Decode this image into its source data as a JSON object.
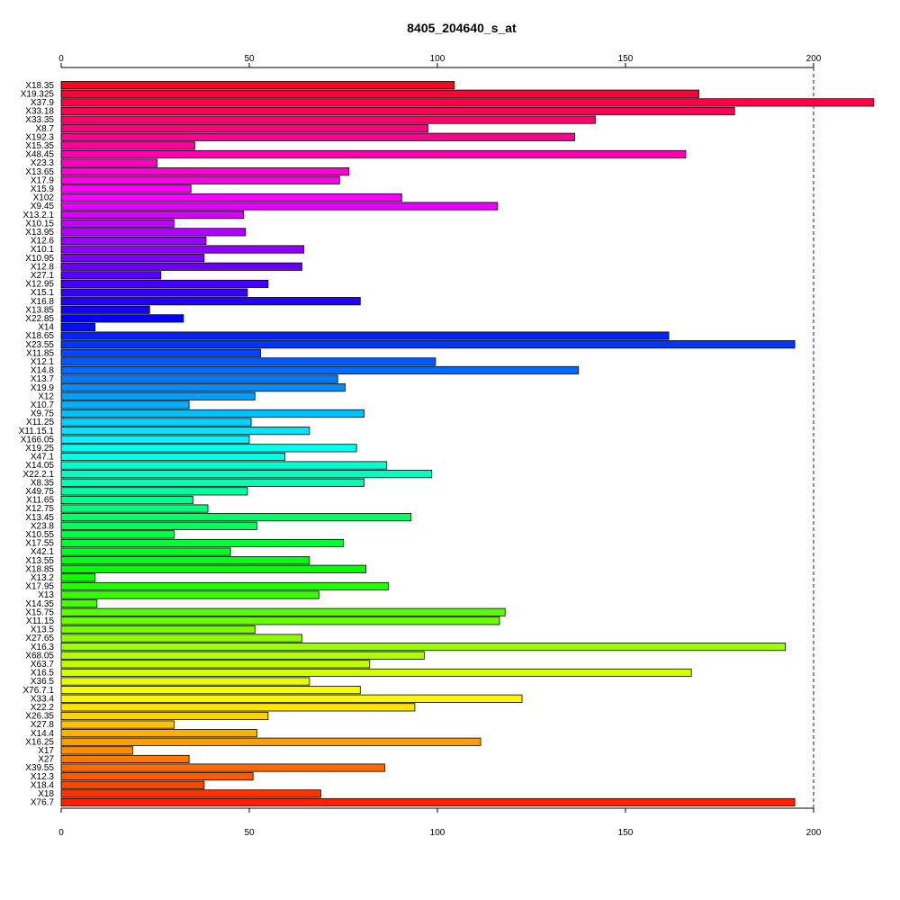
{
  "chart_data": {
    "type": "bar",
    "orientation": "horizontal",
    "title": "8405_204640_s_at",
    "xlabel": "",
    "ylabel": "",
    "xlim": [
      0,
      215
    ],
    "xticks": [
      0,
      50,
      100,
      150,
      200
    ],
    "xtick_labels": [
      "0",
      "50",
      "100",
      "150",
      "200"
    ],
    "reference_line": 200,
    "categories": [
      "X18.35",
      "X19.325",
      "X37.9",
      "X33.18",
      "X33.35",
      "X8.7",
      "X192.3",
      "X15.35",
      "X48.45",
      "X23.3",
      "X13.65",
      "X17.9",
      "X15.9",
      "X102",
      "X9.45",
      "X13.2.1",
      "X10.15",
      "X13.95",
      "X12.6",
      "X10.1",
      "X10.95",
      "X12.8",
      "X27.1",
      "X12.95",
      "X15.1",
      "X16.8",
      "X13.85",
      "X22.85",
      "X14",
      "X18.65",
      "X23.55",
      "X11.85",
      "X12.1",
      "X14.8",
      "X13.7",
      "X19.9",
      "X12",
      "X10.7",
      "X9.75",
      "X11.25",
      "X11.15.1",
      "X166.05",
      "X19.25",
      "X47.1",
      "X14.05",
      "X22.2.1",
      "X8.35",
      "X49.75",
      "X11.65",
      "X12.75",
      "X13.45",
      "X23.8",
      "X10.55",
      "X17.55",
      "X42.1",
      "X13.55",
      "X18.85",
      "X13.2",
      "X17.95",
      "X13",
      "X14.35",
      "X15.75",
      "X11.15",
      "X13.5",
      "X27.65",
      "X16.3",
      "X68.05",
      "X63.7",
      "X16.5",
      "X36.5",
      "X76.7.1",
      "X33.4",
      "X22.2",
      "X26.35",
      "X27.8",
      "X14.4",
      "X16.25",
      "X17",
      "X27",
      "X39.55",
      "X12.3",
      "X18.4",
      "X18",
      "X76.7"
    ],
    "values": [
      104.5,
      169.5,
      216,
      179,
      142,
      97.5,
      136.5,
      35.5,
      166,
      25.5,
      76.5,
      74,
      34.5,
      90.5,
      116,
      48.5,
      30,
      49,
      38.5,
      64.5,
      38,
      64,
      26.5,
      55,
      49.5,
      79.5,
      23.5,
      32.5,
      9,
      161.5,
      195,
      53,
      99.5,
      137.5,
      73.5,
      75.5,
      51.5,
      34,
      80.5,
      50.5,
      66,
      50,
      78.5,
      59.5,
      86.5,
      98.5,
      80.5,
      49.5,
      35,
      39,
      93,
      52,
      30,
      75,
      45,
      66,
      81,
      9,
      87,
      68.5,
      9.5,
      118,
      116.5,
      51.5,
      64,
      192.5,
      96.5,
      82,
      167.5,
      66,
      79.5,
      122.5,
      94,
      55,
      30,
      52,
      111.5,
      19,
      34,
      86,
      51,
      38,
      69,
      195
    ],
    "colors": [
      "#FF0023",
      "#FF0035",
      "#FF0046",
      "#FF0058",
      "#FF0069",
      "#FF007B",
      "#FF008D",
      "#FF009E",
      "#FF00B0",
      "#FF00C1",
      "#FF00D3",
      "#FF00E4",
      "#FF00F6",
      "#F600FF",
      "#E400FF",
      "#D300FF",
      "#C100FF",
      "#B000FF",
      "#9E00FF",
      "#8D00FF",
      "#7B00FF",
      "#6900FF",
      "#5800FF",
      "#4600FF",
      "#3500FF",
      "#2300FF",
      "#1100FF",
      "#0000FF",
      "#0011FF",
      "#0023FF",
      "#0035FF",
      "#0046FF",
      "#0058FF",
      "#0069FF",
      "#007BFF",
      "#008DFF",
      "#009EFF",
      "#00B0FF",
      "#00C1FF",
      "#00D3FF",
      "#00E4FF",
      "#00F6FF",
      "#00FFF6",
      "#00FFE4",
      "#00FFD3",
      "#00FFC1",
      "#00FFB0",
      "#00FF9E",
      "#00FF8D",
      "#00FF7B",
      "#00FF69",
      "#00FF58",
      "#00FF46",
      "#00FF35",
      "#00FF23",
      "#00FF11",
      "#00FF00",
      "#11FF00",
      "#23FF00",
      "#35FF00",
      "#46FF00",
      "#58FF00",
      "#69FF00",
      "#7BFF00",
      "#8DFF00",
      "#9EFF00",
      "#B0FF00",
      "#C1FF00",
      "#D3FF00",
      "#E4FF00",
      "#F6FF00",
      "#FFF600",
      "#FFE400",
      "#FFD300",
      "#FFC100",
      "#FFB000",
      "#FF9E00",
      "#FF8D00",
      "#FF7B00",
      "#FF6900",
      "#FF5800",
      "#FF4600",
      "#FF3500",
      "#FF2300"
    ],
    "grid": false,
    "legend": "none"
  }
}
